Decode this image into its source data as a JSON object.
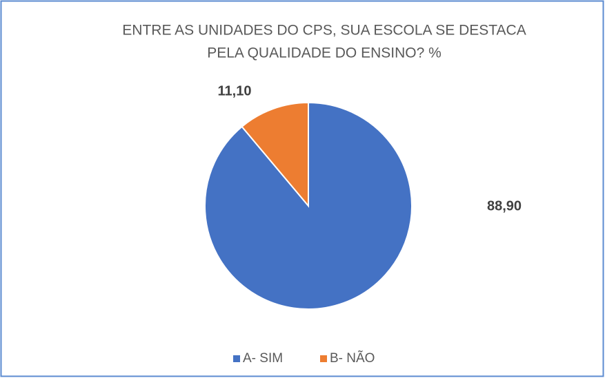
{
  "chart_data": {
    "type": "pie",
    "title": [
      "ENTRE AS UNIDADES DO CPS, SUA ESCOLA SE DESTACA",
      "PELA QUALIDADE DO ENSINO? %"
    ],
    "categories": [
      "A- SIM",
      "B- NÃO"
    ],
    "values": [
      88.9,
      11.1
    ],
    "value_labels": [
      "88,90",
      "11,10"
    ],
    "colors": [
      "#4472c4",
      "#ed7d31"
    ],
    "legend": "bottom"
  }
}
